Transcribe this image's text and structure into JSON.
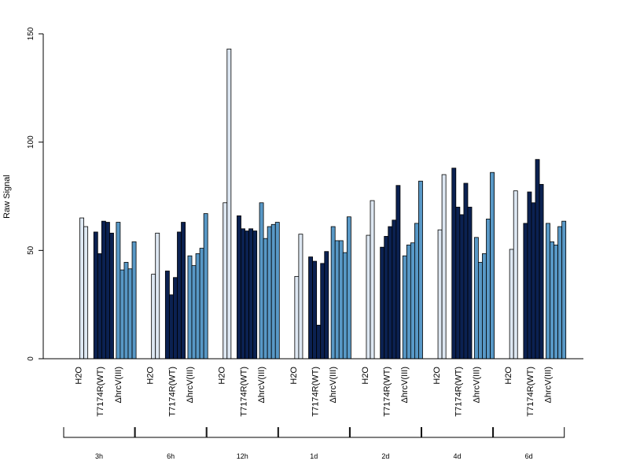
{
  "chart_data": {
    "type": "bar",
    "ylabel": "Raw Signal",
    "ylim": [
      0,
      150
    ],
    "yticks": [
      0,
      50,
      100,
      150
    ],
    "groups": [
      "H2O",
      "T7174R(WT)",
      "ΔhrcV(III)"
    ],
    "colors": {
      "H2O": "#dde7f2",
      "T7174R(WT)": "#0b2151",
      "ΔhrcV(III)": "#5898c6"
    },
    "timepoints": [
      {
        "label": "3h",
        "values": {
          "H2O": [
            0,
            65,
            61
          ],
          "T7174R(WT)": [
            0,
            58.5,
            48.5,
            63.5,
            63,
            58
          ],
          "ΔhrcV(III)": [
            0,
            63,
            41,
            44.5,
            41.5,
            54
          ]
        }
      },
      {
        "label": "6h",
        "values": {
          "H2O": [
            0,
            39,
            58
          ],
          "T7174R(WT)": [
            0,
            40.5,
            29.5,
            37.5,
            58.5,
            63
          ],
          "ΔhrcV(III)": [
            0,
            47.5,
            43,
            48.5,
            51,
            67
          ]
        }
      },
      {
        "label": "12h",
        "values": {
          "H2O": [
            0,
            72,
            143
          ],
          "T7174R(WT)": [
            0,
            66,
            60,
            59,
            60,
            59
          ],
          "ΔhrcV(III)": [
            0,
            72,
            55.5,
            61,
            62,
            63
          ]
        }
      },
      {
        "label": "1d",
        "values": {
          "H2O": [
            0,
            38,
            57.5
          ],
          "T7174R(WT)": [
            0,
            47,
            45,
            15.5,
            44,
            49.5
          ],
          "ΔhrcV(III)": [
            0,
            61,
            54.5,
            54.5,
            49,
            65.5
          ]
        }
      },
      {
        "label": "2d",
        "values": {
          "H2O": [
            0,
            57,
            73
          ],
          "T7174R(WT)": [
            0,
            51.5,
            56.5,
            61,
            64,
            80
          ],
          "ΔhrcV(III)": [
            0,
            47.5,
            52.5,
            53.5,
            62.5,
            82
          ]
        }
      },
      {
        "label": "4d",
        "values": {
          "H2O": [
            0,
            59.5,
            85
          ],
          "T7174R(WT)": [
            0,
            88,
            70,
            66.5,
            81,
            70
          ],
          "ΔhrcV(III)": [
            0,
            56,
            44.5,
            48.5,
            64.5,
            86
          ]
        }
      },
      {
        "label": "6d",
        "values": {
          "H2O": [
            0,
            50.5,
            77.5
          ],
          "T7174R(WT)": [
            0,
            62.5,
            77,
            72,
            92,
            80.5
          ],
          "ΔhrcV(III)": [
            0,
            62.5,
            54,
            52.5,
            61,
            63.5
          ]
        }
      }
    ]
  }
}
